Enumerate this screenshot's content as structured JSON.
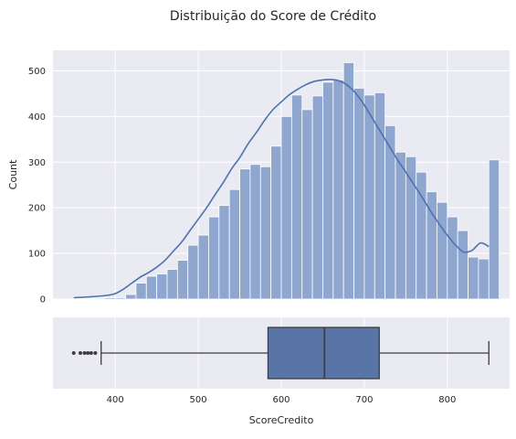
{
  "figure": {
    "title": "Distribuição do Score de Crédito"
  },
  "chart_data": [
    {
      "type": "histogram",
      "xlabel": "",
      "ylabel": "Count",
      "xlim": [
        325,
        875
      ],
      "ylim": [
        0,
        545
      ],
      "xticks": [
        400,
        500,
        600,
        700,
        800
      ],
      "yticks": [
        0,
        100,
        200,
        300,
        400,
        500
      ],
      "grid": true,
      "bin_start": 350,
      "bin_width": 12.5,
      "counts": [
        1,
        1,
        2,
        3,
        3,
        10,
        35,
        50,
        55,
        65,
        85,
        118,
        140,
        180,
        205,
        240,
        285,
        295,
        290,
        335,
        400,
        447,
        415,
        445,
        475,
        480,
        518,
        462,
        447,
        452,
        380,
        322,
        312,
        278,
        235,
        212,
        180,
        150,
        92,
        88,
        305
      ],
      "kde": {
        "x": [
          350,
          370,
          390,
          400,
          410,
          420,
          430,
          440,
          450,
          460,
          470,
          480,
          490,
          500,
          510,
          520,
          530,
          540,
          550,
          560,
          570,
          580,
          590,
          600,
          610,
          620,
          630,
          640,
          650,
          660,
          670,
          680,
          690,
          700,
          710,
          720,
          730,
          740,
          750,
          760,
          770,
          780,
          790,
          800,
          810,
          820,
          830,
          840,
          850
        ],
        "y": [
          3,
          5,
          8,
          12,
          22,
          35,
          48,
          58,
          70,
          85,
          105,
          125,
          150,
          175,
          200,
          228,
          255,
          285,
          310,
          340,
          365,
          392,
          415,
          432,
          448,
          460,
          470,
          477,
          480,
          481,
          478,
          468,
          450,
          425,
          395,
          365,
          335,
          305,
          278,
          250,
          222,
          192,
          165,
          140,
          118,
          103,
          107,
          123,
          115
        ]
      }
    },
    {
      "type": "box",
      "xlabel": "ScoreCredito",
      "xlim": [
        325,
        875
      ],
      "xticks": [
        400,
        500,
        600,
        700,
        800
      ],
      "grid": true,
      "whisker_low": 383,
      "q1": 584,
      "median": 652,
      "q3": 718,
      "whisker_high": 850,
      "outliers": [
        350,
        358,
        363,
        367,
        371,
        376
      ]
    }
  ],
  "colors": {
    "background": "#eaeaf2",
    "grid": "#ffffff",
    "bar": "#8fa6cf",
    "kde": "#4c72b0",
    "box": "#5975a7",
    "box_edge": "#3d3d3d"
  }
}
